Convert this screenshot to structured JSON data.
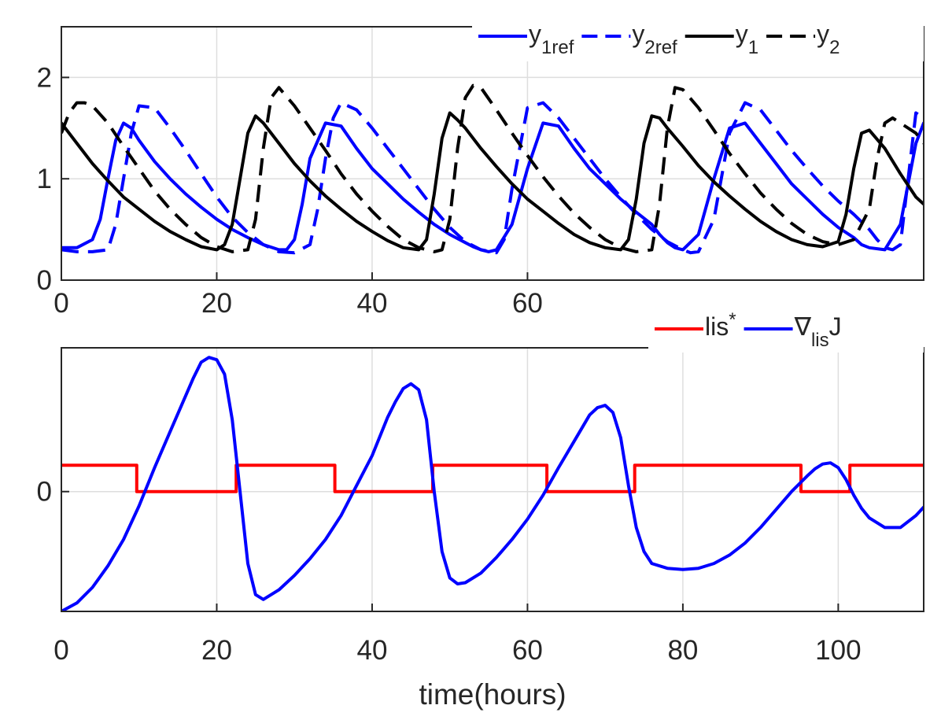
{
  "chart_data": [
    {
      "type": "line",
      "panel": "top",
      "xlim": [
        0,
        111
      ],
      "ylim": [
        0,
        2.5
      ],
      "grid": true,
      "xticks": [
        0,
        20,
        40,
        60
      ],
      "xtick_labels": [
        "0",
        "20",
        "40",
        "60"
      ],
      "yticks": [
        0,
        1,
        2
      ],
      "ytick_labels": [
        "0",
        "1",
        "2"
      ],
      "xlabel": "",
      "ylabel": "",
      "legend_position": "top-right",
      "series": [
        {
          "name": "y1ref",
          "legend_main": "y",
          "legend_sub": "1ref",
          "color": "#0000ff",
          "dash": "solid",
          "x": [
            0,
            2,
            4,
            5,
            6,
            7,
            8,
            9,
            10,
            12,
            14,
            16,
            18,
            20,
            22,
            24,
            26,
            28,
            29,
            30,
            31,
            32,
            34,
            36,
            38,
            40,
            42,
            44,
            46,
            48,
            50,
            52,
            53,
            54,
            55,
            56,
            58,
            60,
            62,
            64,
            66,
            68,
            70,
            72,
            74,
            76,
            77,
            78,
            79,
            80,
            82,
            84,
            86,
            88,
            90,
            92,
            94,
            96,
            98,
            100,
            102,
            103,
            104,
            106,
            108,
            110,
            111
          ],
          "y": [
            0.32,
            0.32,
            0.4,
            0.6,
            1.0,
            1.38,
            1.55,
            1.5,
            1.38,
            1.17,
            1.0,
            0.85,
            0.72,
            0.6,
            0.5,
            0.42,
            0.35,
            0.3,
            0.3,
            0.4,
            0.75,
            1.2,
            1.55,
            1.52,
            1.3,
            1.1,
            0.95,
            0.8,
            0.67,
            0.55,
            0.45,
            0.37,
            0.33,
            0.3,
            0.28,
            0.3,
            0.55,
            1.1,
            1.55,
            1.52,
            1.3,
            1.1,
            0.95,
            0.8,
            0.67,
            0.55,
            0.45,
            0.37,
            0.32,
            0.3,
            0.45,
            1.0,
            1.5,
            1.55,
            1.35,
            1.15,
            0.95,
            0.8,
            0.65,
            0.52,
            0.42,
            0.35,
            0.32,
            0.3,
            0.55,
            1.35,
            1.55
          ]
        },
        {
          "name": "y2ref",
          "legend_main": "y",
          "legend_sub": "2ref",
          "color": "#0000ff",
          "dash": "dashed",
          "x": [
            0,
            2,
            4,
            6,
            7,
            8,
            9,
            10,
            12,
            14,
            16,
            18,
            20,
            22,
            24,
            26,
            28,
            30,
            32,
            33,
            34,
            35,
            36,
            38,
            40,
            42,
            44,
            46,
            48,
            50,
            52,
            54,
            56,
            57,
            58,
            60,
            62,
            64,
            66,
            68,
            70,
            72,
            74,
            76,
            78,
            80,
            81,
            82,
            84,
            86,
            88,
            90,
            92,
            94,
            96,
            98,
            100,
            102,
            104,
            105,
            106,
            107,
            108,
            110,
            111
          ],
          "y": [
            0.3,
            0.28,
            0.28,
            0.3,
            0.55,
            1.0,
            1.45,
            1.72,
            1.7,
            1.5,
            1.28,
            1.05,
            0.82,
            0.62,
            0.47,
            0.35,
            0.28,
            0.27,
            0.35,
            0.7,
            1.2,
            1.6,
            1.75,
            1.68,
            1.5,
            1.3,
            1.1,
            0.9,
            0.7,
            0.52,
            0.38,
            0.3,
            0.27,
            0.4,
            0.9,
            1.7,
            1.75,
            1.6,
            1.4,
            1.2,
            1.0,
            0.82,
            0.65,
            0.5,
            0.38,
            0.3,
            0.27,
            0.28,
            0.6,
            1.45,
            1.75,
            1.68,
            1.48,
            1.28,
            1.1,
            0.93,
            0.78,
            0.65,
            0.5,
            0.4,
            0.32,
            0.3,
            0.35,
            1.65,
            1.6
          ]
        },
        {
          "name": "y1",
          "legend_main": "y",
          "legend_sub": "1",
          "color": "#000000",
          "dash": "solid",
          "x": [
            0,
            2,
            4,
            6,
            8,
            10,
            12,
            14,
            16,
            18,
            20,
            21,
            22,
            23,
            24,
            25,
            26,
            28,
            30,
            32,
            34,
            36,
            38,
            40,
            42,
            44,
            46,
            47,
            48,
            49,
            50,
            51,
            52,
            54,
            56,
            58,
            60,
            62,
            64,
            66,
            68,
            70,
            72,
            73,
            74,
            75,
            76,
            77,
            78,
            80,
            82,
            84,
            86,
            88,
            90,
            92,
            94,
            96,
            98,
            100,
            101,
            102,
            103,
            104,
            106,
            108,
            110,
            111
          ],
          "y": [
            1.55,
            1.35,
            1.15,
            0.98,
            0.82,
            0.7,
            0.58,
            0.48,
            0.4,
            0.33,
            0.3,
            0.35,
            0.55,
            1.0,
            1.45,
            1.62,
            1.55,
            1.35,
            1.15,
            0.98,
            0.83,
            0.7,
            0.58,
            0.48,
            0.39,
            0.32,
            0.3,
            0.4,
            0.85,
            1.4,
            1.65,
            1.58,
            1.5,
            1.3,
            1.12,
            0.95,
            0.8,
            0.68,
            0.56,
            0.45,
            0.37,
            0.32,
            0.3,
            0.4,
            0.8,
            1.35,
            1.62,
            1.6,
            1.5,
            1.32,
            1.13,
            0.97,
            0.83,
            0.7,
            0.58,
            0.48,
            0.4,
            0.35,
            0.33,
            0.38,
            0.65,
            1.1,
            1.45,
            1.48,
            1.3,
            1.05,
            0.82,
            0.75
          ]
        },
        {
          "name": "y2",
          "legend_main": "y",
          "legend_sub": "2",
          "color": "#000000",
          "dash": "dashed",
          "x": [
            0,
            1,
            2,
            3,
            4,
            6,
            8,
            10,
            12,
            14,
            16,
            18,
            20,
            22,
            24,
            25,
            26,
            27,
            28,
            30,
            32,
            34,
            36,
            38,
            40,
            42,
            44,
            46,
            48,
            49,
            50,
            51,
            52,
            53,
            54,
            56,
            58,
            60,
            62,
            64,
            66,
            68,
            70,
            72,
            74,
            76,
            77,
            78,
            79,
            80,
            82,
            84,
            86,
            88,
            90,
            92,
            94,
            96,
            98,
            100,
            102,
            104,
            105,
            106,
            107,
            108,
            110,
            111
          ],
          "y": [
            1.45,
            1.65,
            1.75,
            1.75,
            1.72,
            1.55,
            1.32,
            1.1,
            0.88,
            0.7,
            0.55,
            0.42,
            0.33,
            0.28,
            0.3,
            0.6,
            1.3,
            1.8,
            1.9,
            1.72,
            1.5,
            1.28,
            1.05,
            0.85,
            0.68,
            0.53,
            0.4,
            0.32,
            0.28,
            0.3,
            0.6,
            1.3,
            1.8,
            1.92,
            1.9,
            1.68,
            1.45,
            1.23,
            1.02,
            0.83,
            0.66,
            0.52,
            0.4,
            0.32,
            0.28,
            0.3,
            0.75,
            1.5,
            1.9,
            1.88,
            1.7,
            1.48,
            1.25,
            1.05,
            0.86,
            0.7,
            0.56,
            0.45,
            0.38,
            0.35,
            0.4,
            0.7,
            1.2,
            1.55,
            1.6,
            1.55,
            1.45,
            1.35
          ]
        }
      ]
    },
    {
      "type": "line",
      "panel": "bottom",
      "xlim": [
        0,
        111
      ],
      "ylim": [
        -1,
        1.2
      ],
      "grid": true,
      "xticks": [
        0,
        20,
        40,
        60,
        80,
        100
      ],
      "xtick_labels": [
        "0",
        "20",
        "40",
        "60",
        "80",
        "100"
      ],
      "yticks": [
        0
      ],
      "ytick_labels": [
        "0"
      ],
      "xlabel": "time(hours)",
      "ylabel": "",
      "legend_position": "top-right",
      "series": [
        {
          "name": "lis*",
          "legend_main": "lis",
          "legend_sup": "*",
          "color": "#ff0000",
          "dash": "solid",
          "step": true,
          "x": [
            0,
            9.7,
            9.7,
            22.5,
            22.5,
            35.2,
            35.2,
            47.8,
            47.8,
            62.5,
            62.5,
            73.8,
            73.8,
            95.2,
            95.2,
            101.5,
            101.5,
            111
          ],
          "y": [
            0.22,
            0.22,
            0,
            0,
            0.22,
            0.22,
            0,
            0,
            0.22,
            0.22,
            0,
            0,
            0.22,
            0.22,
            0,
            0,
            0.22,
            0.22
          ]
        },
        {
          "name": "∇lisJ",
          "legend_main": "∇",
          "legend_sub": "lis",
          "legend_tail": "J",
          "color": "#0000ff",
          "dash": "solid",
          "x": [
            0,
            2,
            4,
            6,
            8,
            10,
            12,
            14,
            16,
            17,
            18,
            19,
            20,
            21,
            22,
            23,
            24,
            25,
            26,
            28,
            30,
            32,
            34,
            36,
            38,
            40,
            42,
            43,
            44,
            45,
            46,
            47,
            48,
            49,
            50,
            51,
            52,
            54,
            56,
            58,
            60,
            62,
            64,
            66,
            68,
            69,
            70,
            71,
            72,
            73,
            74,
            75,
            76,
            78,
            80,
            82,
            84,
            86,
            88,
            90,
            92,
            94,
            96,
            97,
            98,
            99,
            100,
            101,
            102,
            103,
            104,
            106,
            108,
            110,
            111
          ],
          "y": [
            -1.0,
            -0.93,
            -0.8,
            -0.62,
            -0.4,
            -0.12,
            0.2,
            0.5,
            0.8,
            0.95,
            1.08,
            1.12,
            1.1,
            0.98,
            0.6,
            0.0,
            -0.6,
            -0.86,
            -0.9,
            -0.82,
            -0.7,
            -0.56,
            -0.4,
            -0.2,
            0.05,
            0.3,
            0.62,
            0.75,
            0.86,
            0.9,
            0.85,
            0.6,
            0.0,
            -0.5,
            -0.72,
            -0.77,
            -0.76,
            -0.68,
            -0.55,
            -0.4,
            -0.23,
            -0.03,
            0.2,
            0.42,
            0.64,
            0.7,
            0.72,
            0.66,
            0.45,
            0.05,
            -0.3,
            -0.5,
            -0.6,
            -0.64,
            -0.65,
            -0.64,
            -0.6,
            -0.53,
            -0.43,
            -0.3,
            -0.15,
            0.0,
            0.13,
            0.19,
            0.23,
            0.24,
            0.2,
            0.1,
            -0.03,
            -0.14,
            -0.22,
            -0.3,
            -0.3,
            -0.2,
            -0.13
          ]
        }
      ]
    }
  ]
}
